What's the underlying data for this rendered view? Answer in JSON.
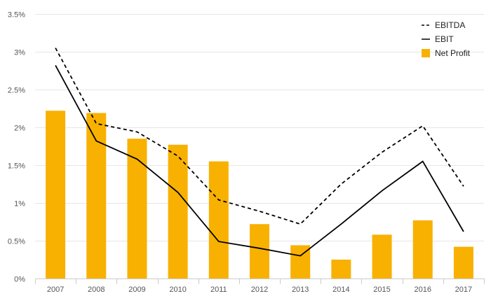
{
  "chart_data": {
    "type": "bar",
    "categories": [
      "2007",
      "2008",
      "2009",
      "2010",
      "2011",
      "2012",
      "2013",
      "2014",
      "2015",
      "2016",
      "2017"
    ],
    "series": [
      {
        "name": "Net Profit",
        "type": "bar",
        "color": "#f8b100",
        "values": [
          2.22,
          2.19,
          1.85,
          1.77,
          1.55,
          0.72,
          0.44,
          0.25,
          0.58,
          0.77,
          0.42
        ]
      },
      {
        "name": "EBITDA",
        "type": "line",
        "style": "dashed",
        "color": "#000000",
        "values": [
          3.05,
          2.05,
          1.94,
          1.62,
          1.04,
          0.89,
          0.72,
          1.25,
          1.67,
          2.02,
          1.22
        ]
      },
      {
        "name": "EBIT",
        "type": "line",
        "style": "solid",
        "color": "#000000",
        "values": [
          2.82,
          1.82,
          1.58,
          1.14,
          0.49,
          0.4,
          0.3,
          0.72,
          1.16,
          1.55,
          0.62
        ]
      }
    ],
    "ylim": [
      0,
      3.5
    ],
    "yticks": [
      "0%",
      "0.5%",
      "1%",
      "1.5%",
      "2%",
      "2.5%",
      "3%",
      "3.5%"
    ],
    "ytick_values": [
      0,
      0.5,
      1,
      1.5,
      2,
      2.5,
      3,
      3.5
    ],
    "grid": true,
    "legend_position": "top-right",
    "legend": [
      "EBITDA",
      "EBIT",
      "Net Profit"
    ]
  }
}
